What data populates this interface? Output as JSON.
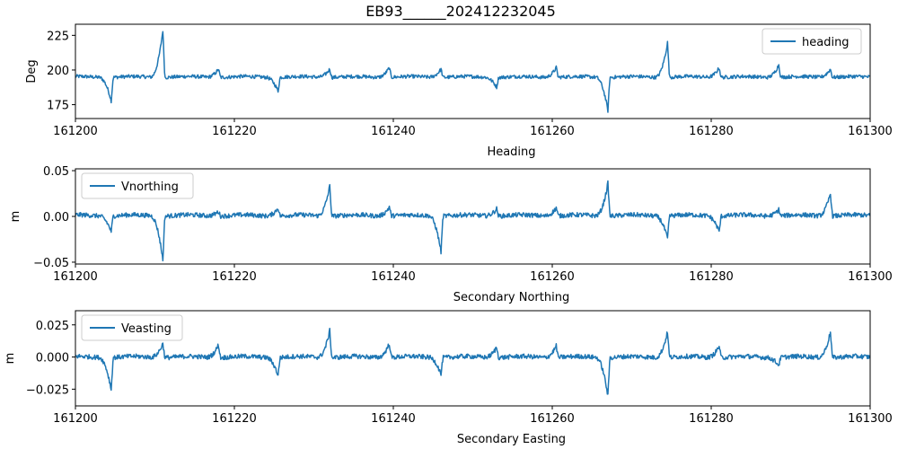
{
  "figure_title": "EB93______202412232045",
  "chart_data": [
    {
      "type": "line",
      "xlabel": "Heading",
      "ylabel": "Deg",
      "xlim": [
        161200,
        161300
      ],
      "ylim": [
        165,
        233
      ],
      "x_ticks": [
        "161200",
        "161220",
        "161240",
        "161260",
        "161280",
        "161300"
      ],
      "y_ticks": [
        "175",
        "200",
        "225"
      ],
      "legend": "top-right",
      "grid": false,
      "series": [
        {
          "name": "heading",
          "color": "#1f77b4",
          "baseline": 195,
          "noise": 1.3,
          "events": [
            {
              "x": 161204.5,
              "y": 178
            },
            {
              "x": 161211.0,
              "y": 229
            },
            {
              "x": 161218.0,
              "y": 201
            },
            {
              "x": 161225.5,
              "y": 185
            },
            {
              "x": 161232.0,
              "y": 201
            },
            {
              "x": 161239.5,
              "y": 202
            },
            {
              "x": 161246.0,
              "y": 201
            },
            {
              "x": 161253.0,
              "y": 188
            },
            {
              "x": 161260.5,
              "y": 202
            },
            {
              "x": 161267.0,
              "y": 171
            },
            {
              "x": 161274.5,
              "y": 220
            },
            {
              "x": 161281.0,
              "y": 202
            },
            {
              "x": 161288.5,
              "y": 204
            },
            {
              "x": 161295.0,
              "y": 201
            }
          ]
        }
      ]
    },
    {
      "type": "line",
      "xlabel": "Secondary Northing",
      "ylabel": "m",
      "xlim": [
        161200,
        161300
      ],
      "ylim": [
        -0.052,
        0.052
      ],
      "x_ticks": [
        "161200",
        "161220",
        "161240",
        "161260",
        "161280",
        "161300"
      ],
      "y_ticks": [
        "0.05",
        "0.00",
        "−0.05"
      ],
      "legend": "top-left",
      "grid": false,
      "series": [
        {
          "name": "Vnorthing",
          "color": "#1f77b4",
          "baseline": 0.001,
          "noise": 0.0025,
          "events": [
            {
              "x": 161204.5,
              "y": -0.016
            },
            {
              "x": 161211.0,
              "y": -0.047
            },
            {
              "x": 161218.0,
              "y": 0.006
            },
            {
              "x": 161225.5,
              "y": 0.01
            },
            {
              "x": 161232.0,
              "y": 0.034
            },
            {
              "x": 161239.5,
              "y": 0.011
            },
            {
              "x": 161246.0,
              "y": -0.038
            },
            {
              "x": 161253.0,
              "y": 0.009
            },
            {
              "x": 161260.5,
              "y": 0.01
            },
            {
              "x": 161267.0,
              "y": 0.037
            },
            {
              "x": 161274.5,
              "y": -0.024
            },
            {
              "x": 161281.0,
              "y": -0.016
            },
            {
              "x": 161288.5,
              "y": 0.008
            },
            {
              "x": 161295.0,
              "y": 0.026
            }
          ]
        }
      ]
    },
    {
      "type": "line",
      "xlabel": "Secondary Easting",
      "ylabel": "m",
      "xlim": [
        161200,
        161300
      ],
      "ylim": [
        -0.038,
        0.036
      ],
      "x_ticks": [
        "161200",
        "161220",
        "161240",
        "161260",
        "161280",
        "161300"
      ],
      "y_ticks": [
        "0.025",
        "0.000",
        "−0.025"
      ],
      "legend": "top-left",
      "grid": false,
      "series": [
        {
          "name": "Veasting",
          "color": "#1f77b4",
          "baseline": 0.0,
          "noise": 0.0018,
          "events": [
            {
              "x": 161204.5,
              "y": -0.025
            },
            {
              "x": 161211.0,
              "y": 0.011
            },
            {
              "x": 161218.0,
              "y": 0.01
            },
            {
              "x": 161225.5,
              "y": -0.014
            },
            {
              "x": 161232.0,
              "y": 0.021
            },
            {
              "x": 161239.5,
              "y": 0.011
            },
            {
              "x": 161246.0,
              "y": -0.013
            },
            {
              "x": 161253.0,
              "y": 0.008
            },
            {
              "x": 161260.5,
              "y": 0.009
            },
            {
              "x": 161267.0,
              "y": -0.03
            },
            {
              "x": 161274.5,
              "y": 0.02
            },
            {
              "x": 161281.0,
              "y": 0.009
            },
            {
              "x": 161288.5,
              "y": -0.006
            },
            {
              "x": 161295.0,
              "y": 0.02
            }
          ]
        }
      ]
    }
  ]
}
